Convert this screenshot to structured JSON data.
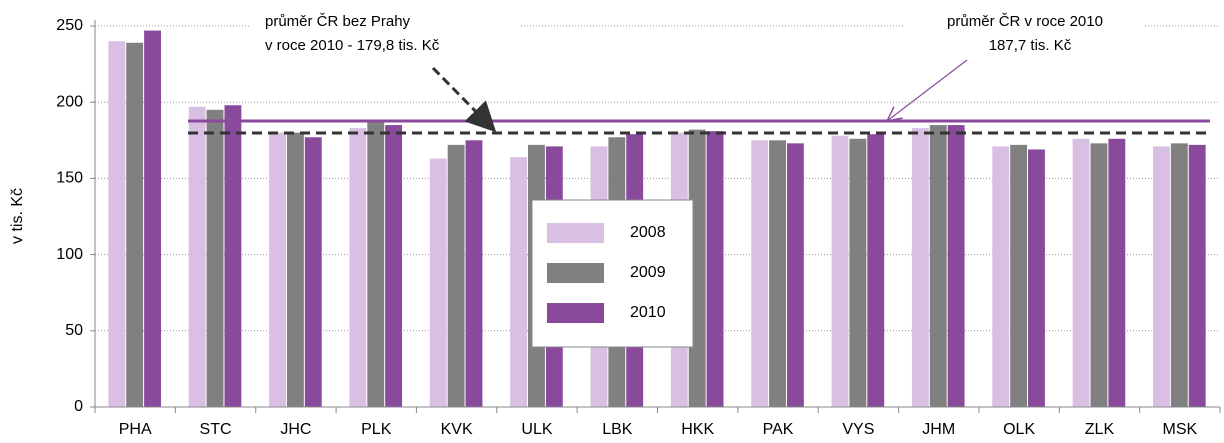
{
  "chart_data": {
    "type": "bar",
    "y_label": "v tis. Kč",
    "categories": [
      "PHA",
      "STC",
      "JHC",
      "PLK",
      "KVK",
      "ULK",
      "LBK",
      "HKK",
      "PAK",
      "VYS",
      "JHM",
      "OLK",
      "ZLK",
      "MSK"
    ],
    "series": [
      {
        "name": "2008",
        "color": "#d9c0e2",
        "values": [
          240,
          197,
          180,
          183,
          163,
          164,
          171,
          180,
          175,
          178,
          183,
          171,
          176,
          171
        ]
      },
      {
        "name": "2009",
        "color": "#808080",
        "values": [
          239,
          195,
          180,
          187,
          172,
          172,
          177,
          182,
          175,
          176,
          185,
          172,
          173,
          173
        ]
      },
      {
        "name": "2010",
        "color": "#8a4a9c",
        "values": [
          247,
          198,
          177,
          185,
          175,
          171,
          179,
          181,
          173,
          179,
          185,
          169,
          176,
          172
        ]
      }
    ],
    "reference_lines": [
      {
        "value": 187.7,
        "color": "#8a4a9c",
        "style": "solid"
      },
      {
        "value": 179.8,
        "color": "#333333",
        "style": "dashed"
      }
    ],
    "annotations": [
      {
        "lines": [
          "průměr ČR  bez Prahy",
          "v roce 2010 - 179,8 tis. Kč"
        ]
      },
      {
        "lines": [
          "průměr ČR v roce 2010",
          "187,7 tis. Kč"
        ]
      }
    ],
    "ylim": [
      0,
      250
    ],
    "yticks": [
      0,
      50,
      100,
      150,
      200,
      250
    ],
    "grid": true,
    "legend": "center"
  }
}
